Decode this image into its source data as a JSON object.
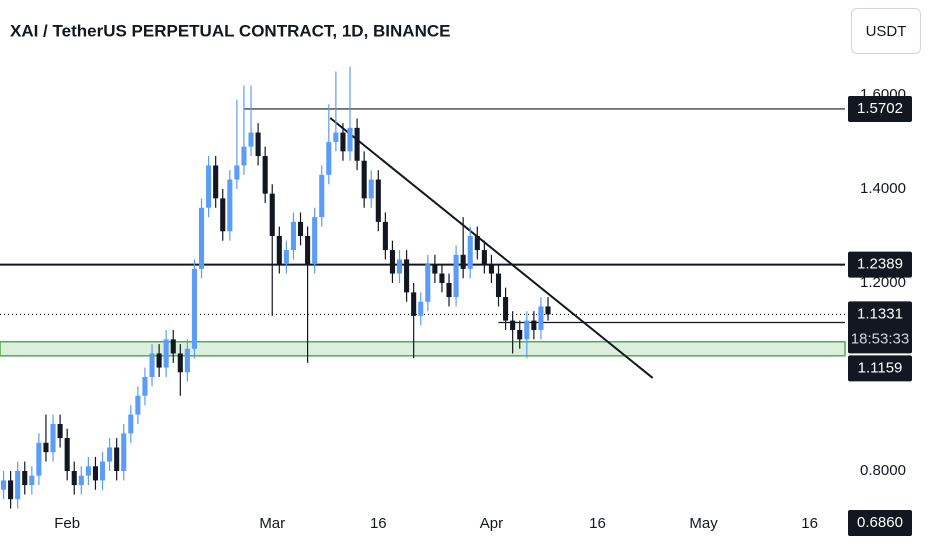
{
  "chart_data": {
    "type": "candlestick",
    "title": "XAI / TetherUS PERPETUAL CONTRACT, 1D, BINANCE",
    "currency": "USDT",
    "up_color": "#5b9cf6",
    "down_color": "#131722",
    "open": [
      0.76,
      0.78,
      0.74,
      0.8,
      0.77,
      0.79,
      0.86,
      0.84,
      0.9,
      0.87,
      0.8,
      0.77,
      0.79,
      0.81,
      0.78,
      0.82,
      0.85,
      0.8,
      0.88,
      0.92,
      0.96,
      1.0,
      1.05,
      1.02,
      1.08,
      1.05,
      1.01,
      1.06,
      1.23,
      1.36,
      1.45,
      1.38,
      1.31,
      1.42,
      1.45,
      1.49,
      1.52,
      1.47,
      1.39,
      1.3,
      1.24,
      1.27,
      1.33,
      1.3,
      1.24,
      1.34,
      1.43,
      1.5,
      1.52,
      1.48,
      1.53,
      1.46,
      1.38,
      1.42,
      1.33,
      1.27,
      1.22,
      1.25,
      1.18,
      1.13,
      1.16,
      1.24,
      1.22,
      1.2,
      1.17,
      1.26,
      1.23,
      1.3,
      1.27,
      1.24,
      1.22,
      1.17,
      1.12,
      1.1,
      1.08,
      1.12,
      1.1,
      1.15
    ],
    "high": [
      0.8,
      0.8,
      0.82,
      0.82,
      0.81,
      0.88,
      0.92,
      0.92,
      0.92,
      0.89,
      0.82,
      0.81,
      0.83,
      0.83,
      0.84,
      0.87,
      0.87,
      0.9,
      0.94,
      0.98,
      1.02,
      1.07,
      1.07,
      1.1,
      1.1,
      1.07,
      1.08,
      1.25,
      1.38,
      1.47,
      1.47,
      1.4,
      1.44,
      1.59,
      1.62,
      1.62,
      1.54,
      1.49,
      1.41,
      1.32,
      1.29,
      1.35,
      1.35,
      1.32,
      1.36,
      1.45,
      1.58,
      1.65,
      1.54,
      1.66,
      1.55,
      1.48,
      1.44,
      1.44,
      1.35,
      1.29,
      1.27,
      1.27,
      1.2,
      1.18,
      1.26,
      1.26,
      1.24,
      1.22,
      1.28,
      1.34,
      1.32,
      1.32,
      1.29,
      1.26,
      1.24,
      1.19,
      1.14,
      1.12,
      1.14,
      1.14,
      1.17,
      1.17
    ],
    "low": [
      0.74,
      0.72,
      0.72,
      0.75,
      0.75,
      0.77,
      0.82,
      0.82,
      0.85,
      0.78,
      0.75,
      0.75,
      0.77,
      0.76,
      0.76,
      0.8,
      0.78,
      0.78,
      0.86,
      0.9,
      0.94,
      0.98,
      1.0,
      1.0,
      1.03,
      0.96,
      0.99,
      1.04,
      1.21,
      1.34,
      1.36,
      1.29,
      1.29,
      1.4,
      1.43,
      1.47,
      1.45,
      1.37,
      1.13,
      1.22,
      1.22,
      1.25,
      1.28,
      1.03,
      1.22,
      1.32,
      1.41,
      1.48,
      1.46,
      1.46,
      1.44,
      1.36,
      1.36,
      1.31,
      1.25,
      1.2,
      1.2,
      1.16,
      1.04,
      1.11,
      1.14,
      1.2,
      1.18,
      1.15,
      1.15,
      1.21,
      1.21,
      1.25,
      1.22,
      1.2,
      1.15,
      1.1,
      1.05,
      1.06,
      1.04,
      1.08,
      1.08,
      1.12
    ],
    "close": [
      0.78,
      0.74,
      0.8,
      0.77,
      0.79,
      0.86,
      0.84,
      0.9,
      0.87,
      0.8,
      0.77,
      0.79,
      0.81,
      0.78,
      0.82,
      0.85,
      0.8,
      0.88,
      0.92,
      0.96,
      1.0,
      1.05,
      1.02,
      1.08,
      1.05,
      1.01,
      1.06,
      1.23,
      1.36,
      1.45,
      1.38,
      1.31,
      1.42,
      1.45,
      1.49,
      1.52,
      1.47,
      1.39,
      1.3,
      1.24,
      1.27,
      1.33,
      1.3,
      1.24,
      1.34,
      1.43,
      1.5,
      1.52,
      1.48,
      1.53,
      1.46,
      1.38,
      1.42,
      1.33,
      1.27,
      1.22,
      1.25,
      1.18,
      1.13,
      1.16,
      1.24,
      1.22,
      1.2,
      1.17,
      1.26,
      1.23,
      1.3,
      1.27,
      1.24,
      1.22,
      1.17,
      1.12,
      1.1,
      1.08,
      1.12,
      1.1,
      1.15,
      1.1331
    ],
    "xlim": [
      -0.5,
      119
    ],
    "xticks": [
      {
        "value": 9,
        "label": "Feb"
      },
      {
        "value": 38,
        "label": "Mar"
      },
      {
        "value": 53,
        "label": "16"
      },
      {
        "value": 69,
        "label": "Apr"
      },
      {
        "value": 84,
        "label": "16"
      },
      {
        "value": 99,
        "label": "May"
      },
      {
        "value": 114,
        "label": "16"
      }
    ],
    "ylim": [
      0.717,
      1.802
    ],
    "yticks": [
      {
        "value": 1.6,
        "label": "1.6000"
      },
      {
        "value": 1.4,
        "label": "1.4000"
      },
      {
        "value": 1.2,
        "label": "1.2000"
      },
      {
        "value": 0.8,
        "label": "0.8000"
      }
    ],
    "levels": [
      {
        "value": 1.5702,
        "label": "1.5702",
        "x": 34
      },
      {
        "value": 1.2389,
        "label": "1.2389",
        "x": -0.5
      },
      {
        "value": 1.1159,
        "label": "1.1159",
        "x": 70
      }
    ],
    "last_price": {
      "value": 1.1331,
      "label": "1.1331",
      "countdown": "18:53:33"
    },
    "low_mark": {
      "value": 0.686,
      "label": "0.6860"
    },
    "zone": [
      1.045,
      1.075
    ],
    "zone_color": "#4caf50",
    "trendline": {
      "x": [
        46.2,
        91.8
      ],
      "y": [
        1.551,
        0.998
      ]
    }
  }
}
